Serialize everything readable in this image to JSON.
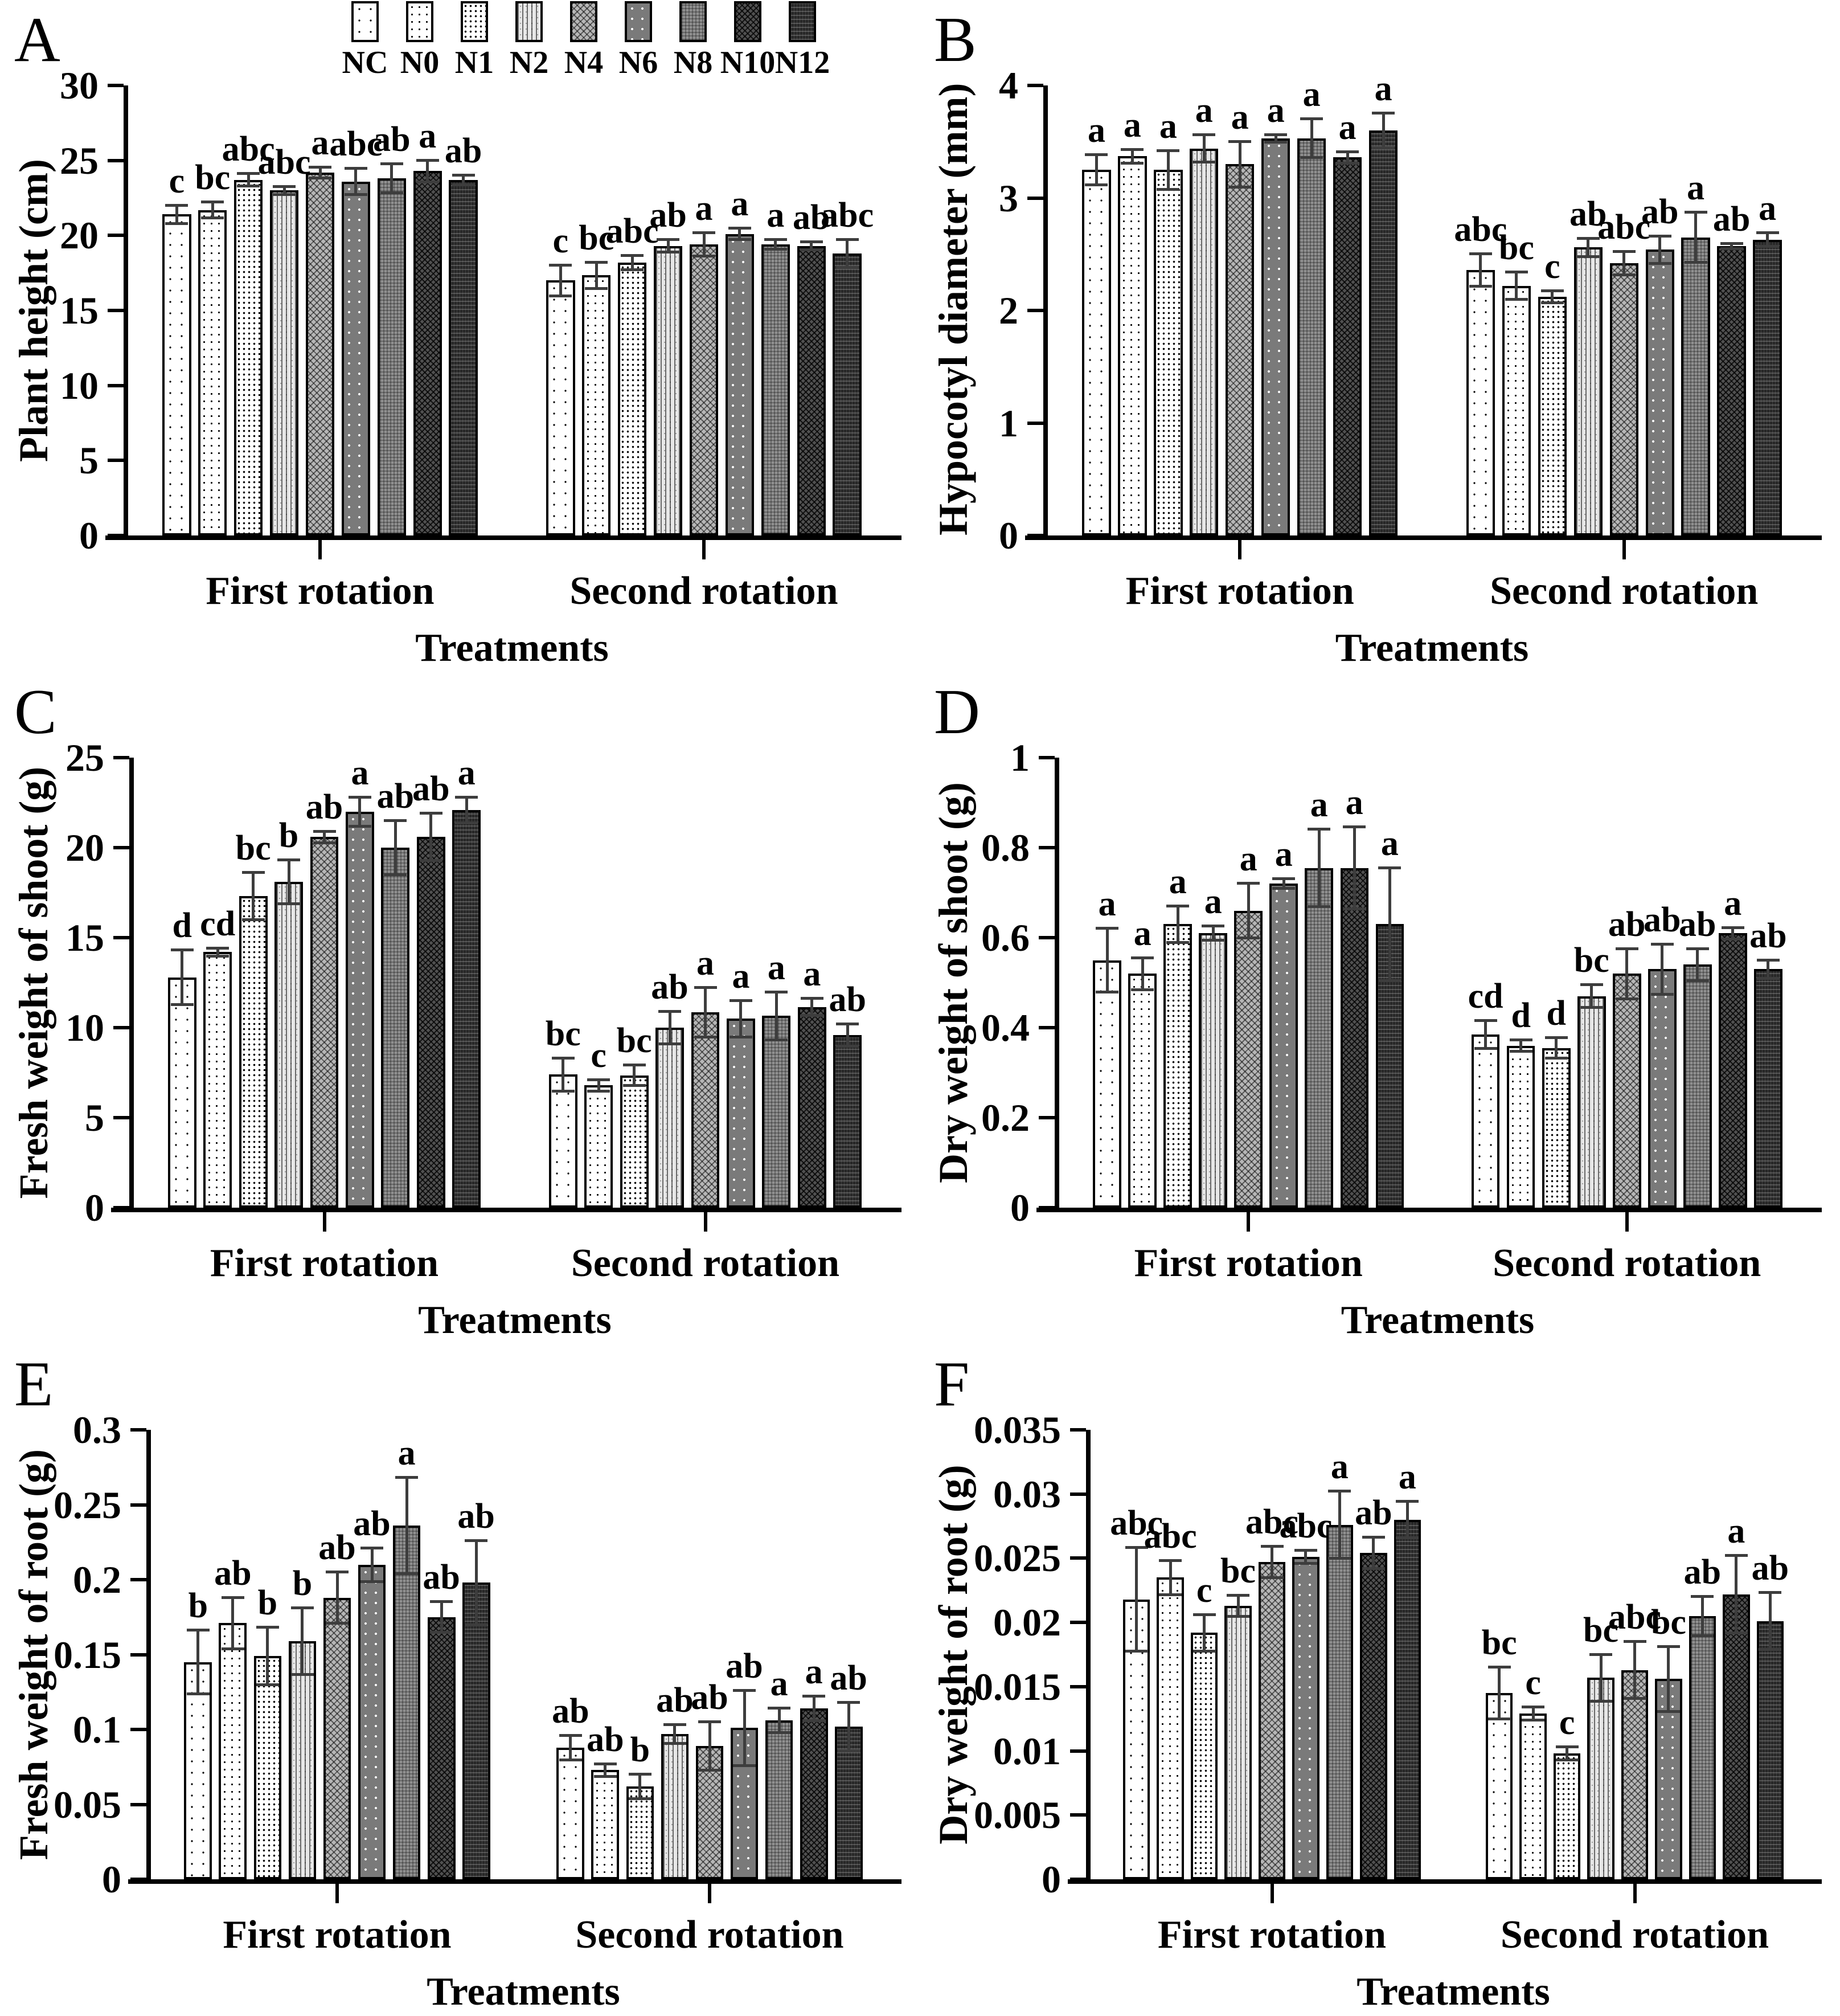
{
  "figure": {
    "panel_labels": [
      "A",
      "B",
      "C",
      "D",
      "E",
      "F"
    ],
    "x_axis_title": "Treatments",
    "group_labels": [
      "First rotation",
      "Second rotation"
    ],
    "colors": {
      "foreground": "#000000",
      "background": "#ffffff",
      "error_bar": "#3d3d3d"
    }
  },
  "legend": {
    "labels": [
      "NC",
      "N0",
      "N1",
      "N2",
      "N4",
      "N6",
      "N8",
      "N10",
      "N12"
    ],
    "position": "top of panel A"
  },
  "chart_data": [
    {
      "id": "A",
      "type": "bar",
      "ylabel": "Plant height (cm)",
      "xlabel": "Treatments",
      "ylim": [
        0,
        30
      ],
      "yticks": [
        0,
        5,
        10,
        15,
        20,
        25,
        30
      ],
      "ytick_labels": [
        "0",
        "5",
        "10",
        "15",
        "20",
        "25",
        "30"
      ],
      "categories": [
        "NC",
        "N0",
        "N1",
        "N2",
        "N4",
        "N6",
        "N8",
        "N10",
        "N12"
      ],
      "grid": false,
      "groups": [
        {
          "label": "First rotation",
          "values": [
            21.4,
            21.7,
            23.7,
            23.0,
            24.2,
            23.6,
            23.8,
            24.3,
            23.7
          ],
          "errors": [
            0.6,
            0.5,
            0.4,
            0.25,
            0.35,
            0.85,
            0.95,
            0.7,
            0.3
          ],
          "letters": [
            "c",
            "bc",
            "abc",
            "abc",
            "a",
            "abc",
            "ab",
            "a",
            "ab"
          ]
        },
        {
          "label": "Second rotation",
          "values": [
            17.0,
            17.35,
            18.2,
            19.3,
            19.4,
            20.1,
            19.4,
            19.3,
            18.8
          ],
          "errors": [
            1.0,
            0.85,
            0.45,
            0.4,
            0.75,
            0.35,
            0.3,
            0.25,
            0.9
          ],
          "letters": [
            "c",
            "bc",
            "abc",
            "ab",
            "a",
            "a",
            "a",
            "ab",
            "abc"
          ]
        }
      ],
      "layout": {
        "left_margin": 225
      }
    },
    {
      "id": "B",
      "type": "bar",
      "ylabel": "Hypocotyl diameter (mm)",
      "xlabel": "Treatments",
      "ylim": [
        0,
        4
      ],
      "yticks": [
        0,
        1,
        2,
        3,
        4
      ],
      "ytick_labels": [
        "0",
        "1",
        "2",
        "3",
        "4"
      ],
      "categories": [
        "NC",
        "N0",
        "N1",
        "N2",
        "N4",
        "N6",
        "N8",
        "N10",
        "N12"
      ],
      "grid": false,
      "groups": [
        {
          "label": "First rotation",
          "values": [
            3.25,
            3.37,
            3.25,
            3.44,
            3.3,
            3.53,
            3.53,
            3.36,
            3.6
          ],
          "errors": [
            0.13,
            0.06,
            0.17,
            0.12,
            0.2,
            0.03,
            0.17,
            0.05,
            0.15
          ],
          "letters": [
            "a",
            "a",
            "a",
            "a",
            "a",
            "a",
            "a",
            "a",
            "a"
          ]
        },
        {
          "label": "Second rotation",
          "values": [
            2.36,
            2.22,
            2.12,
            2.56,
            2.42,
            2.54,
            2.65,
            2.57,
            2.63
          ],
          "errors": [
            0.14,
            0.12,
            0.05,
            0.08,
            0.1,
            0.12,
            0.22,
            0.02,
            0.06
          ],
          "letters": [
            "abc",
            "bc",
            "c",
            "ab",
            "abc",
            "ab",
            "a",
            "ab",
            "a"
          ]
        }
      ],
      "layout": {
        "left_margin": 225
      }
    },
    {
      "id": "C",
      "type": "bar",
      "ylabel": "Fresh weight of shoot (g)",
      "xlabel": "Treatments",
      "ylim": [
        0,
        25
      ],
      "yticks": [
        0,
        5,
        10,
        15,
        20,
        25
      ],
      "ytick_labels": [
        "0",
        "5",
        "10",
        "15",
        "20",
        "25"
      ],
      "categories": [
        "NC",
        "N0",
        "N1",
        "N2",
        "N4",
        "N6",
        "N8",
        "N10",
        "N12"
      ],
      "grid": false,
      "groups": [
        {
          "label": "First rotation",
          "values": [
            12.8,
            14.2,
            17.3,
            18.1,
            20.6,
            22.0,
            20.0,
            20.6,
            22.1
          ],
          "errors": [
            1.5,
            0.2,
            1.3,
            1.2,
            0.3,
            0.8,
            1.5,
            1.3,
            0.7
          ],
          "letters": [
            "d",
            "cd",
            "bc",
            "b",
            "ab",
            "a",
            "ab",
            "ab",
            "a"
          ]
        },
        {
          "label": "Second rotation",
          "values": [
            7.4,
            6.8,
            7.35,
            10.0,
            10.85,
            10.5,
            10.65,
            11.15,
            9.6
          ],
          "errors": [
            0.9,
            0.3,
            0.55,
            0.9,
            1.35,
            1.0,
            1.3,
            0.45,
            0.6
          ],
          "letters": [
            "bc",
            "c",
            "bc",
            "ab",
            "a",
            "a",
            "a",
            "a",
            "ab"
          ]
        }
      ],
      "layout": {
        "left_margin": 235
      }
    },
    {
      "id": "D",
      "type": "bar",
      "ylabel": "Dry weight of shoot (g)",
      "xlabel": "Treatments",
      "ylim": [
        0,
        1
      ],
      "yticks": [
        0,
        0.2,
        0.4,
        0.6,
        0.8,
        1
      ],
      "ytick_labels": [
        "0",
        "0.2",
        "0.4",
        "0.6",
        "0.8",
        "1"
      ],
      "categories": [
        "NC",
        "N0",
        "N1",
        "N2",
        "N4",
        "N6",
        "N8",
        "N10",
        "N12"
      ],
      "grid": false,
      "groups": [
        {
          "label": "First rotation",
          "values": [
            0.55,
            0.52,
            0.63,
            0.61,
            0.66,
            0.72,
            0.755,
            0.755,
            0.63
          ],
          "errors": [
            0.07,
            0.035,
            0.04,
            0.015,
            0.06,
            0.01,
            0.085,
            0.09,
            0.125
          ],
          "letters": [
            "a",
            "a",
            "a",
            "a",
            "a",
            "a",
            "a",
            "a",
            "a"
          ]
        },
        {
          "label": "Second rotation",
          "values": [
            0.385,
            0.36,
            0.355,
            0.47,
            0.52,
            0.53,
            0.54,
            0.61,
            0.53
          ],
          "errors": [
            0.03,
            0.012,
            0.022,
            0.025,
            0.055,
            0.055,
            0.035,
            0.012,
            0.02
          ],
          "letters": [
            "cd",
            "d",
            "d",
            "bc",
            "ab",
            "ab",
            "ab",
            "a",
            "ab"
          ]
        }
      ],
      "layout": {
        "left_margin": 245
      }
    },
    {
      "id": "E",
      "type": "bar",
      "ylabel": "Fresh weight of root (g)",
      "xlabel": "Treatments",
      "ylim": [
        0,
        0.3
      ],
      "yticks": [
        0,
        0.05,
        0.1,
        0.15,
        0.2,
        0.25,
        0.3
      ],
      "ytick_labels": [
        "0",
        "0.05",
        "0.1",
        "0.15",
        "0.2",
        "0.25",
        "0.3"
      ],
      "categories": [
        "NC",
        "N0",
        "N1",
        "N2",
        "N4",
        "N6",
        "N8",
        "N10",
        "N12"
      ],
      "grid": false,
      "groups": [
        {
          "label": "First rotation",
          "values": [
            0.145,
            0.171,
            0.149,
            0.159,
            0.188,
            0.21,
            0.236,
            0.175,
            0.198
          ],
          "errors": [
            0.021,
            0.017,
            0.019,
            0.022,
            0.017,
            0.011,
            0.032,
            0.01,
            0.028
          ],
          "letters": [
            "b",
            "ab",
            "b",
            "b",
            "ab",
            "ab",
            "a",
            "ab",
            "ab"
          ]
        },
        {
          "label": "Second rotation",
          "values": [
            0.088,
            0.073,
            0.062,
            0.097,
            0.089,
            0.101,
            0.106,
            0.114,
            0.102
          ],
          "errors": [
            0.008,
            0.004,
            0.008,
            0.006,
            0.016,
            0.025,
            0.008,
            0.008,
            0.016
          ],
          "letters": [
            "ab",
            "ab",
            "b",
            "ab",
            "ab",
            "ab",
            "a",
            "a",
            "ab"
          ]
        }
      ],
      "layout": {
        "left_margin": 265
      }
    },
    {
      "id": "F",
      "type": "bar",
      "ylabel": "Dry weight of root (g)",
      "xlabel": "Treatments",
      "ylim": [
        0,
        0.035
      ],
      "yticks": [
        0,
        0.005,
        0.01,
        0.015,
        0.02,
        0.025,
        0.03,
        0.035
      ],
      "ytick_labels": [
        "0",
        "0.005",
        "0.01",
        "0.015",
        "0.02",
        "0.025",
        "0.03",
        "0.035"
      ],
      "categories": [
        "NC",
        "N0",
        "N1",
        "N2",
        "N4",
        "N6",
        "N8",
        "N10",
        "N12"
      ],
      "grid": false,
      "groups": [
        {
          "label": "First rotation",
          "values": [
            0.0218,
            0.0235,
            0.0192,
            0.0213,
            0.0247,
            0.0251,
            0.0276,
            0.0254,
            0.028
          ],
          "errors": [
            0.004,
            0.0013,
            0.0014,
            0.0008,
            0.0012,
            0.0005,
            0.0026,
            0.0012,
            0.0014
          ],
          "letters": [
            "abc",
            "abc",
            "c",
            "bc",
            "abc",
            "abc",
            "a",
            "ab",
            "a"
          ]
        },
        {
          "label": "Second rotation",
          "values": [
            0.0145,
            0.0129,
            0.0098,
            0.0157,
            0.0163,
            0.0156,
            0.0205,
            0.0222,
            0.0201
          ],
          "errors": [
            0.002,
            0.0005,
            0.0005,
            0.0018,
            0.0022,
            0.0025,
            0.0015,
            0.003,
            0.0022
          ],
          "letters": [
            "bc",
            "c",
            "c",
            "bc",
            "abc",
            "bc",
            "ab",
            "a",
            "ab"
          ]
        }
      ],
      "layout": {
        "left_margin": 300
      }
    }
  ]
}
